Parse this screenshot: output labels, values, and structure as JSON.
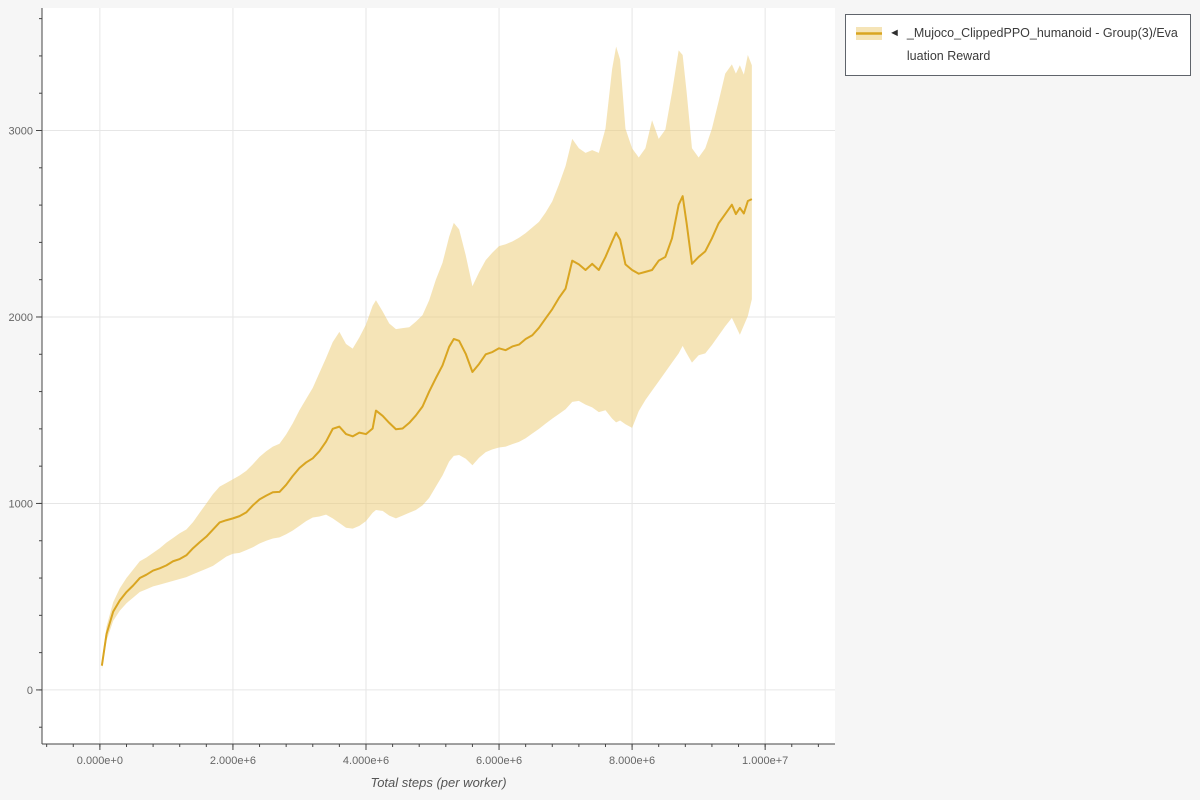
{
  "legend": {
    "toggle_icon": "◄",
    "label": "_Mujoco_ClippedPPO_humanoid - Group(3)/Evaluation Reward"
  },
  "chart_data": {
    "type": "line",
    "title": "",
    "xlabel": "Total steps (per worker)",
    "ylabel": "",
    "grid": true,
    "legend_position": "top-right-outside",
    "x_range": [
      -870000,
      11050000
    ],
    "y_range": [
      -290,
      3657
    ],
    "x_ticks": [
      {
        "v": 0,
        "label": "0.000e+0"
      },
      {
        "v": 2000000,
        "label": "2.000e+6"
      },
      {
        "v": 4000000,
        "label": "4.000e+6"
      },
      {
        "v": 6000000,
        "label": "6.000e+6"
      },
      {
        "v": 8000000,
        "label": "8.000e+6"
      },
      {
        "v": 10000000,
        "label": "1.000e+7"
      }
    ],
    "y_ticks": [
      {
        "v": 0,
        "label": "0"
      },
      {
        "v": 1000,
        "label": "1000"
      },
      {
        "v": 2000,
        "label": "2000"
      },
      {
        "v": 3000,
        "label": "3000"
      }
    ],
    "colors": {
      "grid": "#e6e6e6",
      "axis": "#444444",
      "tick_label": "#666666",
      "axis_label": "#555555"
    },
    "series": [
      {
        "name": "_Mujoco_ClippedPPO_humanoid - Group(3)/Evaluation Reward",
        "line_color": "#d9a521",
        "band_fill": "#ecc96f",
        "band_opacity": 0.5,
        "x": [
          30000,
          100000,
          200000,
          300000,
          400000,
          500000,
          600000,
          700000,
          800000,
          900000,
          1000000,
          1100000,
          1200000,
          1300000,
          1400000,
          1500000,
          1600000,
          1700000,
          1800000,
          1900000,
          2000000,
          2100000,
          2200000,
          2300000,
          2400000,
          2500000,
          2600000,
          2700000,
          2800000,
          2900000,
          3000000,
          3100000,
          3200000,
          3300000,
          3400000,
          3500000,
          3600000,
          3700000,
          3800000,
          3900000,
          4000000,
          4100000,
          4150000,
          4250000,
          4350000,
          4450000,
          4550000,
          4650000,
          4750000,
          4850000,
          4950000,
          5050000,
          5150000,
          5250000,
          5320000,
          5400000,
          5500000,
          5600000,
          5700000,
          5800000,
          5900000,
          6000000,
          6100000,
          6200000,
          6300000,
          6400000,
          6500000,
          6600000,
          6700000,
          6800000,
          6900000,
          7000000,
          7100000,
          7200000,
          7300000,
          7400000,
          7500000,
          7600000,
          7700000,
          7760000,
          7820000,
          7900000,
          8000000,
          8100000,
          8200000,
          8300000,
          8400000,
          8500000,
          8600000,
          8700000,
          8760000,
          8820000,
          8900000,
          9000000,
          9100000,
          9200000,
          9300000,
          9400000,
          9500000,
          9560000,
          9620000,
          9680000,
          9740000,
          9800000
        ],
        "mean": [
          130,
          300,
          420,
          480,
          525,
          560,
          600,
          618,
          640,
          652,
          668,
          690,
          702,
          722,
          760,
          792,
          822,
          860,
          898,
          910,
          920,
          932,
          952,
          990,
          1022,
          1042,
          1060,
          1062,
          1100,
          1148,
          1190,
          1220,
          1242,
          1280,
          1332,
          1400,
          1412,
          1372,
          1360,
          1380,
          1372,
          1402,
          1498,
          1470,
          1432,
          1398,
          1402,
          1432,
          1472,
          1520,
          1600,
          1672,
          1740,
          1840,
          1882,
          1872,
          1802,
          1705,
          1748,
          1800,
          1812,
          1832,
          1822,
          1842,
          1852,
          1882,
          1902,
          1942,
          1992,
          2042,
          2102,
          2152,
          2302,
          2282,
          2252,
          2285,
          2252,
          2322,
          2405,
          2452,
          2415,
          2282,
          2252,
          2232,
          2242,
          2252,
          2302,
          2322,
          2422,
          2602,
          2648,
          2502,
          2285,
          2322,
          2352,
          2422,
          2502,
          2552,
          2602,
          2552,
          2585,
          2555,
          2622,
          2632
        ],
        "lower": [
          110,
          265,
          370,
          425,
          465,
          495,
          525,
          540,
          555,
          565,
          575,
          585,
          595,
          605,
          620,
          635,
          650,
          665,
          690,
          715,
          730,
          735,
          750,
          765,
          785,
          800,
          812,
          818,
          835,
          855,
          880,
          905,
          925,
          930,
          940,
          920,
          895,
          870,
          865,
          880,
          905,
          950,
          965,
          960,
          935,
          920,
          935,
          950,
          965,
          990,
          1030,
          1090,
          1150,
          1225,
          1255,
          1260,
          1240,
          1205,
          1245,
          1275,
          1290,
          1300,
          1305,
          1318,
          1330,
          1350,
          1375,
          1400,
          1428,
          1455,
          1480,
          1505,
          1545,
          1550,
          1530,
          1515,
          1490,
          1500,
          1455,
          1435,
          1445,
          1425,
          1405,
          1495,
          1555,
          1605,
          1655,
          1705,
          1755,
          1805,
          1845,
          1805,
          1755,
          1795,
          1805,
          1850,
          1900,
          1950,
          1995,
          1950,
          1905,
          1955,
          2005,
          2095
        ],
        "upper": [
          155,
          340,
          470,
          545,
          600,
          645,
          690,
          710,
          735,
          760,
          790,
          815,
          840,
          860,
          900,
          950,
          1000,
          1050,
          1090,
          1110,
          1130,
          1150,
          1175,
          1210,
          1250,
          1280,
          1305,
          1320,
          1370,
          1430,
          1500,
          1560,
          1620,
          1700,
          1780,
          1865,
          1920,
          1855,
          1830,
          1890,
          1960,
          2060,
          2090,
          2030,
          1965,
          1935,
          1940,
          1945,
          1975,
          2010,
          2090,
          2200,
          2290,
          2430,
          2505,
          2470,
          2330,
          2165,
          2240,
          2305,
          2345,
          2380,
          2390,
          2405,
          2425,
          2450,
          2480,
          2510,
          2560,
          2620,
          2710,
          2810,
          2955,
          2905,
          2880,
          2895,
          2880,
          3010,
          3330,
          3450,
          3380,
          3010,
          2905,
          2855,
          2905,
          3055,
          2955,
          3005,
          3205,
          3430,
          3405,
          3205,
          2905,
          2855,
          2905,
          3010,
          3155,
          3305,
          3355,
          3305,
          3350,
          3300,
          3405,
          3350
        ]
      }
    ]
  }
}
